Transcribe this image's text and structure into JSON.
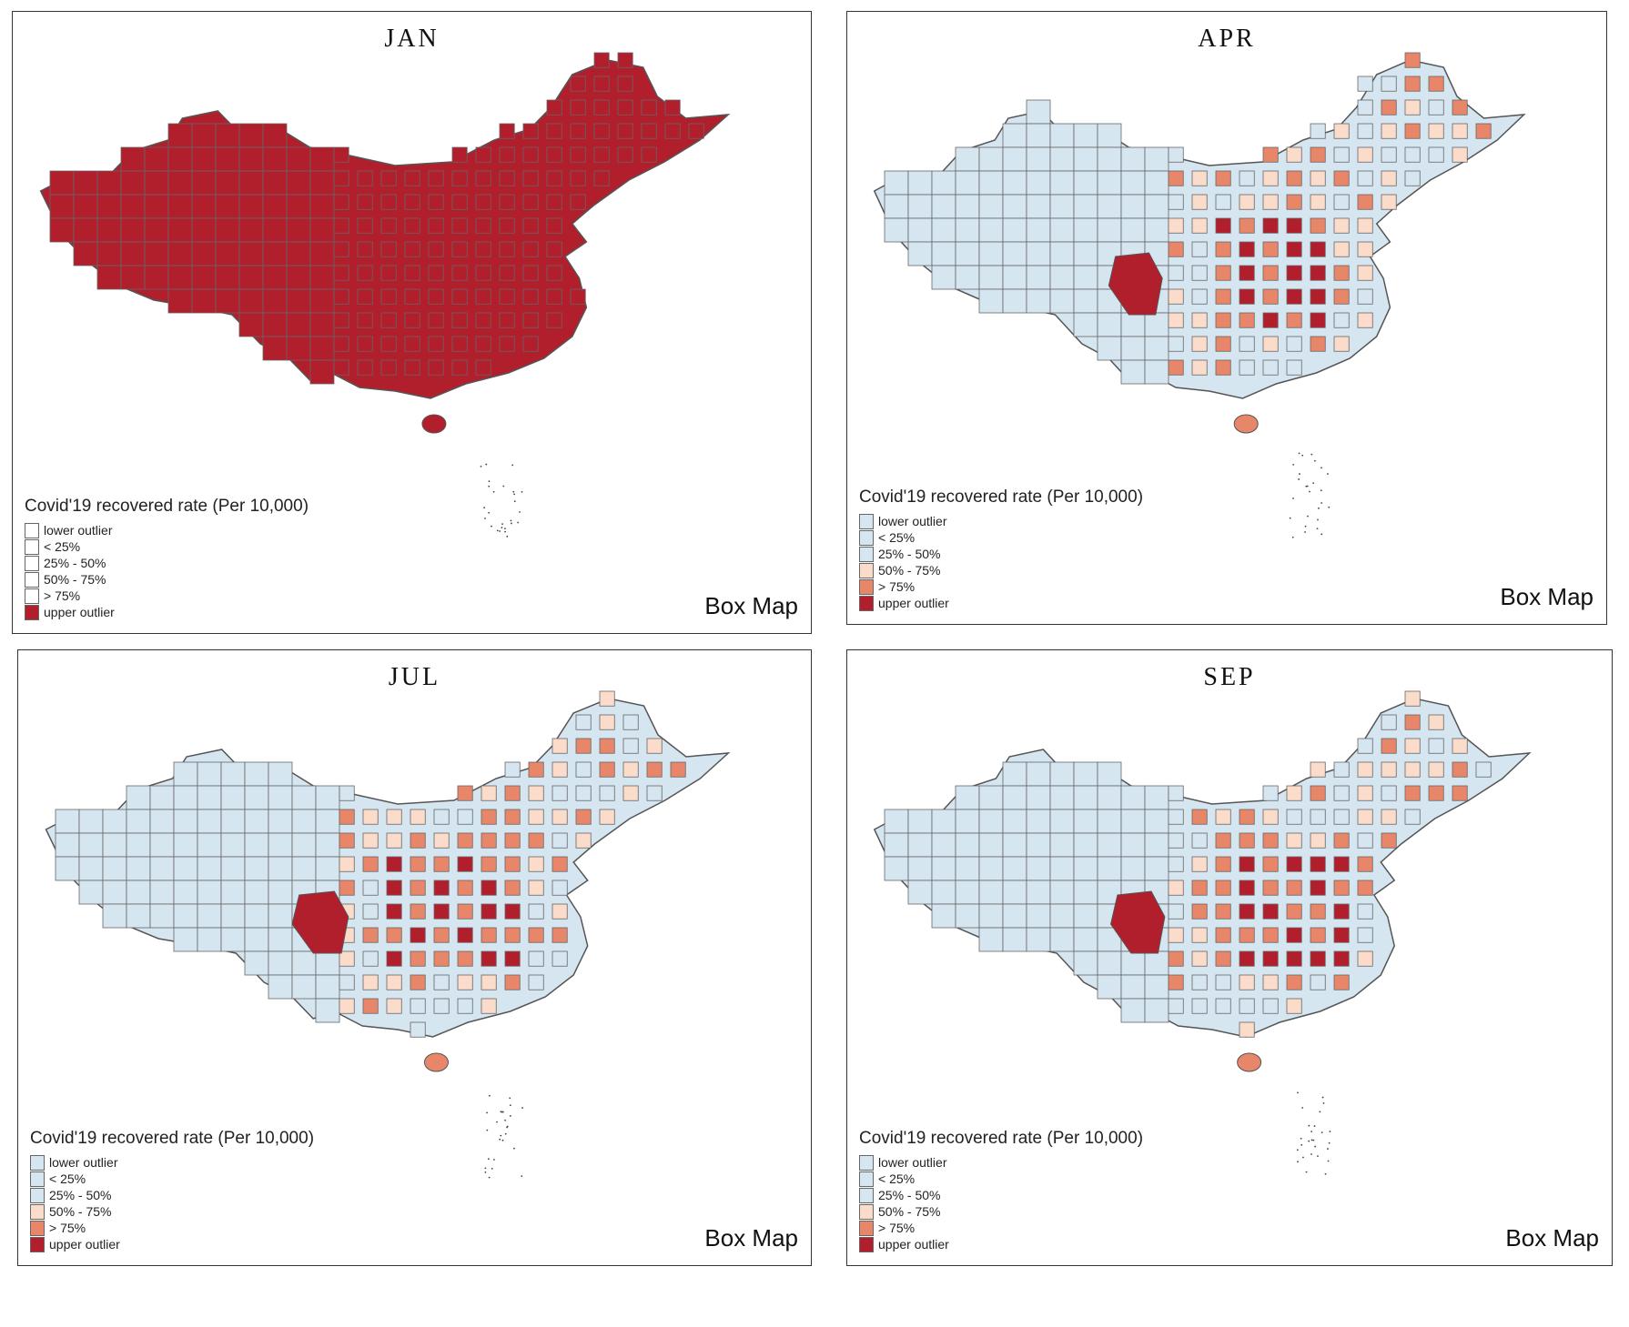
{
  "colors": {
    "light_blue": "#d6e6f0",
    "light_peach": "#fbdccb",
    "salmon": "#e8866a",
    "dark_red": "#b11f2d",
    "empty": "#ffffff"
  },
  "legend_labels": [
    "lower outlier",
    "< 25%",
    "25% - 50%",
    "50% - 75%",
    "> 75%",
    "upper outlier"
  ],
  "panels": [
    {
      "title": "JAN",
      "legend_title": "Covid'19 recovered rate (Per 10,000)",
      "box_map_label": "Box Map",
      "legend_colors": [
        "#ffffff",
        "#ffffff",
        "#ffffff",
        "#ffffff",
        "#ffffff",
        "#b11f2d"
      ],
      "mode": "all-outlier"
    },
    {
      "title": "APR",
      "legend_title": "Covid'19 recovered rate (Per 10,000)",
      "box_map_label": "Box Map",
      "legend_colors": [
        "#d6e6f0",
        "#d6e6f0",
        "#d6e6f0",
        "#fbdccb",
        "#e8866a",
        "#b11f2d"
      ],
      "mode": "mixed"
    },
    {
      "title": "JUL",
      "legend_title": "Covid'19 recovered rate (Per 10,000)",
      "box_map_label": "Box Map",
      "legend_colors": [
        "#d6e6f0",
        "#d6e6f0",
        "#d6e6f0",
        "#fbdccb",
        "#e8866a",
        "#b11f2d"
      ],
      "mode": "mixed"
    },
    {
      "title": "SEP",
      "legend_title": "Covid'19 recovered rate (Per 10,000)",
      "box_map_label": "Box Map",
      "legend_colors": [
        "#d6e6f0",
        "#d6e6f0",
        "#d6e6f0",
        "#fbdccb",
        "#e8866a",
        "#b11f2d"
      ],
      "mode": "mixed"
    }
  ]
}
